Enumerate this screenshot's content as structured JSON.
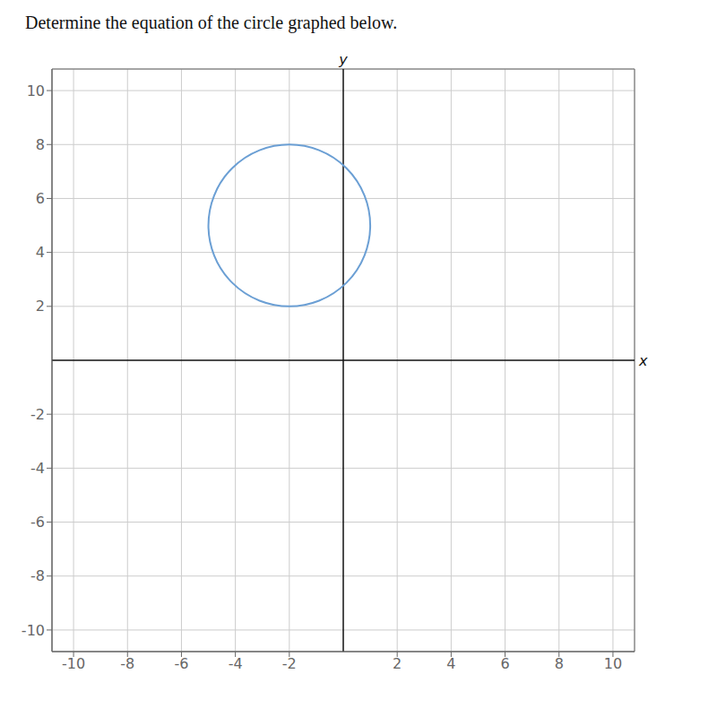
{
  "chart_data": {
    "type": "circle",
    "title": "Determine the equation of the circle graphed below.",
    "xlabel": "x",
    "ylabel": "y",
    "center": [
      -2,
      5
    ],
    "radius": 3,
    "color": "#6b9fd4",
    "xlim": [
      -10.8,
      10.8
    ],
    "ylim": [
      -10.8,
      10.8
    ],
    "xticks": [
      -10,
      -8,
      -6,
      -4,
      -2,
      2,
      4,
      6,
      8,
      10
    ],
    "yticks": [
      -10,
      -8,
      -6,
      -4,
      -2,
      2,
      4,
      6,
      8,
      10
    ],
    "grid": true
  }
}
